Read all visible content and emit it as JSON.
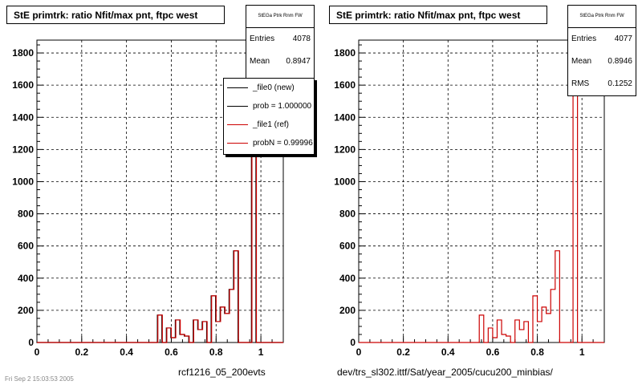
{
  "chart_data": [
    {
      "type": "histogram",
      "title": "StE primtrk: ratio Nfit/max pnt, ftpc west",
      "xlabel": "rcf1216_05_200evts",
      "ylabel": "",
      "xlim": [
        0,
        1.1
      ],
      "ylim": [
        0,
        1880
      ],
      "x_ticks": [
        0,
        0.2,
        0.4,
        0.6,
        0.8,
        1
      ],
      "y_ticks": [
        0,
        200,
        400,
        600,
        800,
        1000,
        1200,
        1400,
        1600,
        1800
      ],
      "grid": true,
      "bin_width": 0.02,
      "stats": {
        "name": "StEGa Ptrk Rnm FW",
        "entries_label": "Entries",
        "entries": "4078",
        "mean_label": "Mean",
        "mean": "0.8947"
      },
      "legend": {
        "placement": "top-right",
        "entries": [
          "_file0 (new)",
          "prob = 1.000000",
          "_file1 (ref)",
          "probN = 0.99996"
        ]
      },
      "series": [
        {
          "name": "_file0 (new)",
          "color": "#000000",
          "bins": [
            [
              0.55,
              170
            ],
            [
              0.57,
              0
            ],
            [
              0.59,
              90
            ],
            [
              0.61,
              30
            ],
            [
              0.63,
              140
            ],
            [
              0.65,
              50
            ],
            [
              0.67,
              40
            ],
            [
              0.69,
              0
            ],
            [
              0.71,
              140
            ],
            [
              0.73,
              80
            ],
            [
              0.75,
              130
            ],
            [
              0.77,
              0
            ],
            [
              0.79,
              290
            ],
            [
              0.81,
              130
            ],
            [
              0.83,
              220
            ],
            [
              0.85,
              180
            ],
            [
              0.87,
              330
            ],
            [
              0.89,
              570
            ],
            [
              0.91,
              0
            ],
            [
              0.93,
              0
            ],
            [
              0.95,
              0
            ],
            [
              0.97,
              1780
            ],
            [
              0.99,
              0
            ]
          ]
        },
        {
          "name": "_file1 (ref)",
          "color": "#cc0000",
          "bins": [
            [
              0.55,
              170
            ],
            [
              0.57,
              0
            ],
            [
              0.59,
              90
            ],
            [
              0.61,
              30
            ],
            [
              0.63,
              140
            ],
            [
              0.65,
              50
            ],
            [
              0.67,
              40
            ],
            [
              0.69,
              0
            ],
            [
              0.71,
              140
            ],
            [
              0.73,
              80
            ],
            [
              0.75,
              130
            ],
            [
              0.77,
              0
            ],
            [
              0.79,
              290
            ],
            [
              0.81,
              130
            ],
            [
              0.83,
              220
            ],
            [
              0.85,
              180
            ],
            [
              0.87,
              330
            ],
            [
              0.89,
              570
            ],
            [
              0.91,
              0
            ],
            [
              0.93,
              0
            ],
            [
              0.95,
              0
            ],
            [
              0.97,
              1780
            ],
            [
              0.99,
              0
            ]
          ]
        }
      ]
    },
    {
      "type": "histogram",
      "title": "StE primtrk: ratio Nfit/max pnt, ftpc west",
      "xlabel": "dev/trs_sl302.ittf/Sat/year_2005/cucu200_minbias/",
      "ylabel": "",
      "xlim": [
        0,
        1.1
      ],
      "ylim": [
        0,
        1880
      ],
      "x_ticks": [
        0,
        0.2,
        0.4,
        0.6,
        0.8,
        1
      ],
      "y_ticks": [
        0,
        200,
        400,
        600,
        800,
        1000,
        1200,
        1400,
        1600,
        1800
      ],
      "grid": true,
      "bin_width": 0.02,
      "stats": {
        "name": "StEGa Ptrk Rnm FW",
        "entries_label": "Entries",
        "entries": "4077",
        "mean_label": "Mean",
        "mean": "0.8946",
        "rms_label": "RMS",
        "rms": "0.1252"
      },
      "series": [
        {
          "name": "",
          "color": "#cc0000",
          "bins": [
            [
              0.55,
              170
            ],
            [
              0.57,
              0
            ],
            [
              0.59,
              90
            ],
            [
              0.61,
              30
            ],
            [
              0.63,
              140
            ],
            [
              0.65,
              50
            ],
            [
              0.67,
              40
            ],
            [
              0.69,
              0
            ],
            [
              0.71,
              140
            ],
            [
              0.73,
              80
            ],
            [
              0.75,
              130
            ],
            [
              0.77,
              0
            ],
            [
              0.79,
              290
            ],
            [
              0.81,
              130
            ],
            [
              0.83,
              220
            ],
            [
              0.85,
              180
            ],
            [
              0.87,
              330
            ],
            [
              0.89,
              570
            ],
            [
              0.91,
              0
            ],
            [
              0.93,
              0
            ],
            [
              0.95,
              0
            ],
            [
              0.97,
              1780
            ],
            [
              0.99,
              0
            ]
          ]
        }
      ]
    }
  ],
  "footer": "Fri Sep  2 15:03:53 2005"
}
